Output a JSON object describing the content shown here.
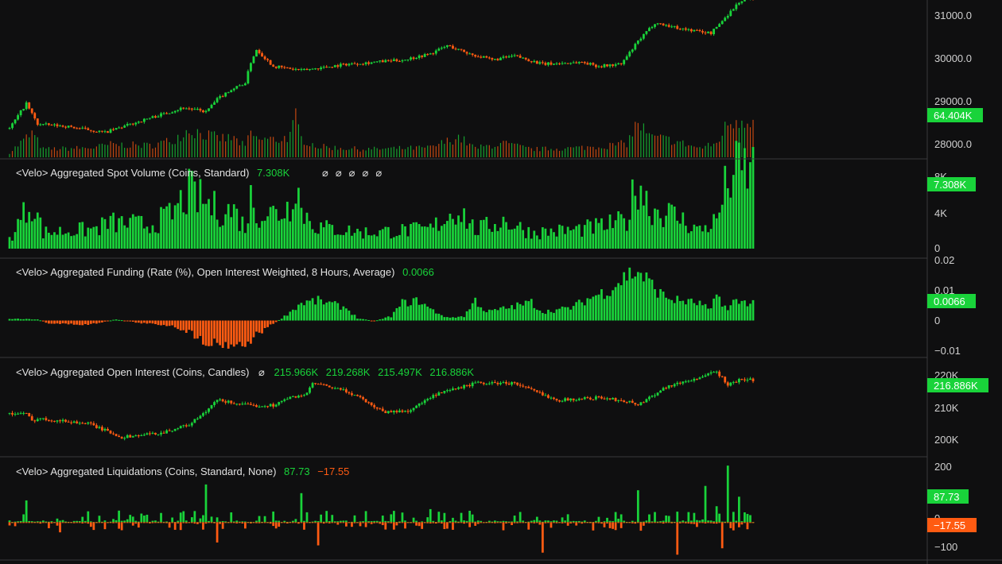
{
  "colors": {
    "up": "#19d33a",
    "down": "#ff5b12",
    "background": "#0f0f10",
    "separator": "#3a3a3d"
  },
  "chart_data": [
    {
      "type": "candlestick",
      "pane": "price",
      "y_ticks": [
        "31000.0",
        "30000.0",
        "29000.0",
        "28000.0"
      ],
      "ylim": [
        27600,
        31400
      ],
      "volume_label": "64.404K",
      "anchors": [
        [
          0,
          28300
        ],
        [
          6,
          28900
        ],
        [
          10,
          28400
        ],
        [
          20,
          28350
        ],
        [
          34,
          28200
        ],
        [
          50,
          28550
        ],
        [
          62,
          28800
        ],
        [
          66,
          28750
        ],
        [
          70,
          28700
        ],
        [
          74,
          29000
        ],
        [
          78,
          29200
        ],
        [
          84,
          29400
        ],
        [
          86,
          29900
        ],
        [
          88,
          30200
        ],
        [
          94,
          29800
        ],
        [
          104,
          29700
        ],
        [
          120,
          29850
        ],
        [
          140,
          29950
        ],
        [
          150,
          30100
        ],
        [
          156,
          30300
        ],
        [
          164,
          30100
        ],
        [
          172,
          29950
        ],
        [
          180,
          30050
        ],
        [
          190,
          29850
        ],
        [
          204,
          29900
        ],
        [
          210,
          29800
        ],
        [
          218,
          29850
        ],
        [
          224,
          30400
        ],
        [
          230,
          30850
        ],
        [
          240,
          30700
        ],
        [
          250,
          30600
        ],
        [
          254,
          30900
        ],
        [
          260,
          31350
        ],
        [
          264,
          31450
        ]
      ]
    },
    {
      "type": "bar",
      "pane": "spot-volume",
      "title": "<Velo> Aggregated Spot Volume (Coins, Standard)",
      "value": "7.308K",
      "flags": [
        "⌀",
        "⌀",
        "⌀",
        "⌀",
        "⌀"
      ],
      "y_ticks": [
        "8K",
        "4K",
        "0"
      ],
      "ylim": [
        0,
        8200
      ],
      "badge": "7.308K",
      "anchors": [
        [
          0,
          900
        ],
        [
          6,
          3600
        ],
        [
          8,
          4500
        ],
        [
          12,
          1500
        ],
        [
          30,
          1800
        ],
        [
          36,
          2400
        ],
        [
          50,
          2200
        ],
        [
          58,
          3200
        ],
        [
          62,
          4600
        ],
        [
          64,
          5200
        ],
        [
          74,
          3600
        ],
        [
          80,
          3500
        ],
        [
          84,
          2000
        ],
        [
          86,
          4600
        ],
        [
          88,
          3400
        ],
        [
          96,
          3300
        ],
        [
          100,
          4000
        ],
        [
          102,
          7200
        ],
        [
          104,
          3500
        ],
        [
          110,
          2000
        ],
        [
          126,
          1500
        ],
        [
          150,
          1800
        ],
        [
          160,
          3800
        ],
        [
          166,
          1700
        ],
        [
          176,
          2600
        ],
        [
          186,
          1500
        ],
        [
          200,
          1700
        ],
        [
          212,
          2100
        ],
        [
          220,
          2600
        ],
        [
          224,
          6600
        ],
        [
          228,
          3800
        ],
        [
          236,
          3200
        ],
        [
          246,
          1700
        ],
        [
          252,
          2600
        ],
        [
          256,
          6400
        ],
        [
          260,
          7300
        ]
      ]
    },
    {
      "type": "bar",
      "pane": "funding",
      "title": "<Velo> Aggregated Funding (Rate (%), Open Interest Weighted, 8 Hours, Average)",
      "value": "0.0066",
      "y_ticks": [
        "0.02",
        "0.01",
        "0",
        "−0.01"
      ],
      "ylim": [
        -0.0125,
        0.0215
      ],
      "badge": "0.0066",
      "anchors": [
        [
          0,
          0.0006
        ],
        [
          10,
          0.0004
        ],
        [
          14,
          -0.001
        ],
        [
          28,
          -0.0015
        ],
        [
          38,
          0.0004
        ],
        [
          46,
          -0.0008
        ],
        [
          58,
          -0.0018
        ],
        [
          64,
          -0.004
        ],
        [
          70,
          -0.0075
        ],
        [
          76,
          -0.0082
        ],
        [
          84,
          -0.0085
        ],
        [
          88,
          -0.005
        ],
        [
          98,
          0.0015
        ],
        [
          104,
          0.0062
        ],
        [
          110,
          0.007
        ],
        [
          116,
          0.0055
        ],
        [
          120,
          0.0045
        ],
        [
          124,
          0.0008
        ],
        [
          130,
          -0.0002
        ],
        [
          136,
          0.0015
        ],
        [
          140,
          0.0062
        ],
        [
          146,
          0.007
        ],
        [
          150,
          0.004
        ],
        [
          156,
          0.001
        ],
        [
          162,
          0.0015
        ],
        [
          166,
          0.0072
        ],
        [
          170,
          0.003
        ],
        [
          180,
          0.005
        ],
        [
          186,
          0.0065
        ],
        [
          190,
          0.003
        ],
        [
          200,
          0.0045
        ],
        [
          208,
          0.0085
        ],
        [
          214,
          0.011
        ],
        [
          220,
          0.016
        ],
        [
          224,
          0.0175
        ],
        [
          228,
          0.0135
        ],
        [
          232,
          0.0095
        ],
        [
          236,
          0.0075
        ],
        [
          246,
          0.006
        ],
        [
          250,
          0.0035
        ],
        [
          252,
          0.0095
        ],
        [
          256,
          0.0035
        ],
        [
          258,
          0.0066
        ]
      ]
    },
    {
      "type": "candlestick",
      "pane": "open-interest",
      "title": "<Velo> Aggregated Open Interest (Coins, Candles)",
      "flag": "⌀",
      "values": [
        "215.966K",
        "219.268K",
        "215.497K",
        "216.886K"
      ],
      "y_ticks": [
        "220K",
        "210K",
        "200K"
      ],
      "ylim": [
        196000,
        222700
      ],
      "badge": "216.886K",
      "anchors": [
        [
          0,
          207500
        ],
        [
          6,
          207500
        ],
        [
          8,
          205500
        ],
        [
          10,
          206200
        ],
        [
          28,
          204800
        ],
        [
          40,
          201000
        ],
        [
          54,
          202200
        ],
        [
          64,
          204500
        ],
        [
          70,
          208000
        ],
        [
          74,
          211300
        ],
        [
          86,
          209700
        ],
        [
          94,
          209900
        ],
        [
          100,
          212000
        ],
        [
          106,
          213000
        ],
        [
          108,
          216000
        ],
        [
          118,
          214200
        ],
        [
          124,
          212500
        ],
        [
          130,
          209500
        ],
        [
          134,
          208000
        ],
        [
          142,
          208300
        ],
        [
          152,
          212800
        ],
        [
          166,
          216000
        ],
        [
          180,
          216000
        ],
        [
          190,
          212800
        ],
        [
          196,
          211300
        ],
        [
          210,
          212000
        ],
        [
          220,
          211000
        ],
        [
          224,
          210000
        ],
        [
          234,
          215000
        ],
        [
          248,
          218000
        ],
        [
          252,
          219300
        ],
        [
          256,
          215500
        ],
        [
          260,
          216900
        ]
      ]
    },
    {
      "type": "bar",
      "pane": "liquidations",
      "title": "<Velo> Aggregated Liquidations (Coins, Standard, None)",
      "values": [
        "87.73",
        "−17.55"
      ],
      "y_ticks": [
        "200",
        "0",
        "−100"
      ],
      "ylim": [
        -125,
        220
      ],
      "badges": [
        "87.73",
        "−17.55"
      ],
      "positive": [
        [
          6,
          75
        ],
        [
          70,
          130
        ],
        [
          104,
          100
        ],
        [
          150,
          45
        ],
        [
          224,
          110
        ],
        [
          248,
          125
        ],
        [
          252,
          55
        ],
        [
          256,
          195
        ],
        [
          260,
          87.73
        ]
      ],
      "negative": [
        [
          18,
          -35
        ],
        [
          74,
          -70
        ],
        [
          110,
          -80
        ],
        [
          190,
          -105
        ],
        [
          238,
          -112
        ],
        [
          254,
          -90
        ],
        [
          260,
          -17.55
        ]
      ]
    }
  ]
}
